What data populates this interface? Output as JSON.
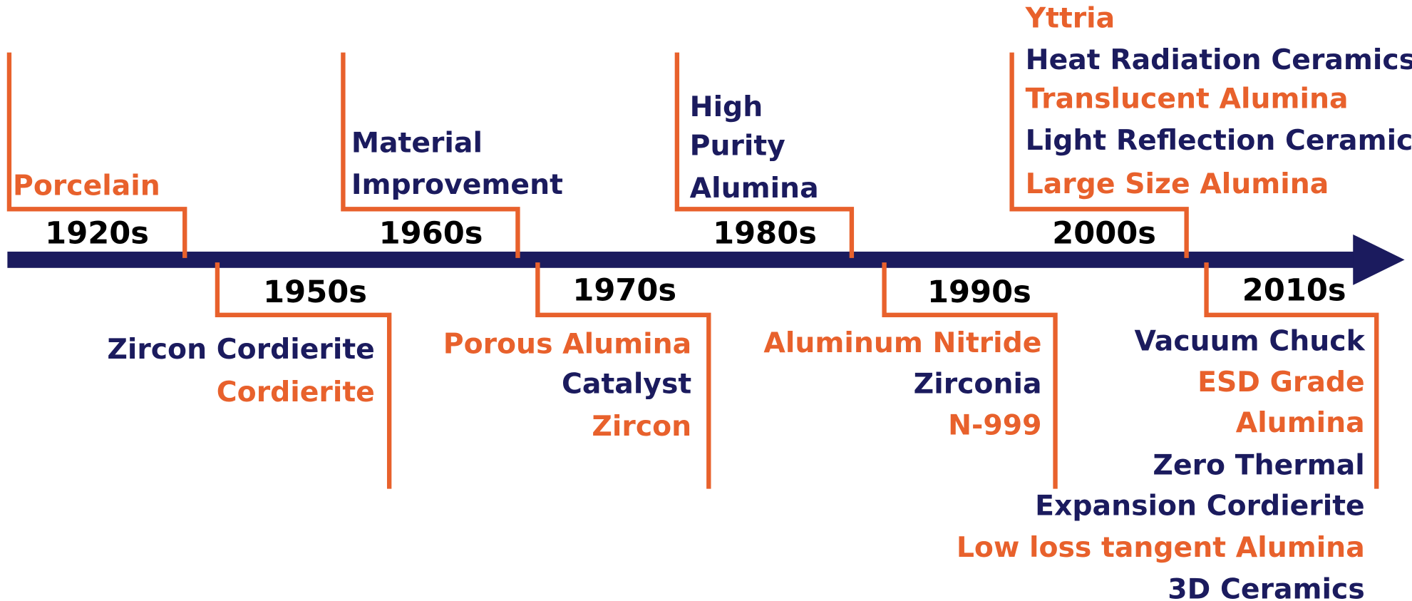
{
  "eras": [
    {
      "decade": "1920s",
      "items": [
        {
          "text": "Porcelain",
          "color": "#e8612c"
        }
      ]
    },
    {
      "decade": "1950s",
      "items": [
        {
          "text": "Zircon Cordierite",
          "color": "#1b1b5e"
        },
        {
          "text": "Cordierite",
          "color": "#e8612c"
        }
      ]
    },
    {
      "decade": "1960s",
      "items": [
        {
          "text": "Material",
          "color": "#1b1b5e"
        },
        {
          "text": "Improvement",
          "color": "#1b1b5e"
        }
      ]
    },
    {
      "decade": "1970s",
      "items": [
        {
          "text": "Porous Alumina",
          "color": "#e8612c"
        },
        {
          "text": "Catalyst",
          "color": "#1b1b5e"
        },
        {
          "text": "Zircon",
          "color": "#e8612c"
        }
      ]
    },
    {
      "decade": "1980s",
      "items": [
        {
          "text": "High",
          "color": "#1b1b5e"
        },
        {
          "text": "Purity",
          "color": "#1b1b5e"
        },
        {
          "text": "Alumina",
          "color": "#1b1b5e"
        }
      ]
    },
    {
      "decade": "1990s",
      "items": [
        {
          "text": "Aluminum Nitride",
          "color": "#e8612c"
        },
        {
          "text": "Zirconia",
          "color": "#1b1b5e"
        },
        {
          "text": "N-999",
          "color": "#e8612c"
        }
      ]
    },
    {
      "decade": "2000s",
      "items": [
        {
          "text": "Yttria",
          "color": "#e8612c"
        },
        {
          "text": "Heat Radiation Ceramics",
          "color": "#1b1b5e"
        },
        {
          "text": "Translucent Alumina",
          "color": "#e8612c"
        },
        {
          "text": "Light Reflection Ceramic",
          "color": "#1b1b5e"
        },
        {
          "text": "Large Size Alumina",
          "color": "#e8612c"
        }
      ]
    },
    {
      "decade": "2010s",
      "items": [
        {
          "text": "Vacuum Chuck",
          "color": "#1b1b5e"
        },
        {
          "text": "ESD Grade",
          "color": "#e8612c"
        },
        {
          "text": "Alumina",
          "color": "#e8612c"
        },
        {
          "text": "Zero Thermal",
          "color": "#1b1b5e"
        },
        {
          "text": "Expansion Cordierite",
          "color": "#1b1b5e"
        },
        {
          "text": "Low loss tangent Alumina",
          "color": "#e8612c"
        },
        {
          "text": "3D Ceramics",
          "color": "#1b1b5e"
        }
      ]
    }
  ]
}
